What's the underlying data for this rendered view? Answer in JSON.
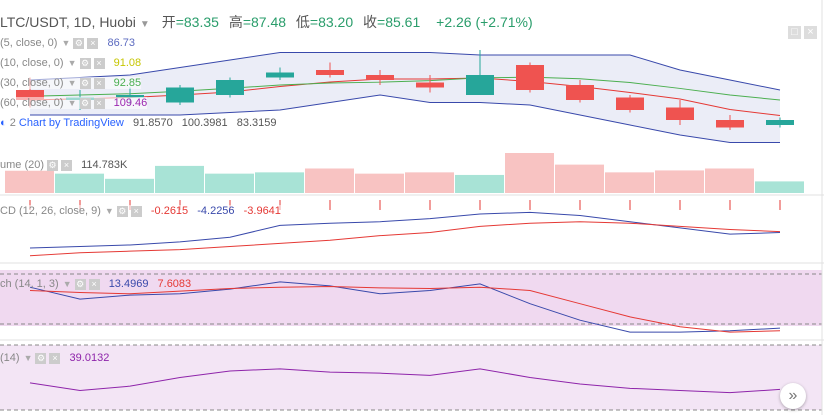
{
  "header": {
    "symbol": "LTC/USDT, 1D, Huobi",
    "open_label": "开",
    "open": "=83.35",
    "high_label": "高",
    "high": "=87.48",
    "low_label": "低",
    "low": "=83.20",
    "close_label": "收",
    "close": "=85.61",
    "change": "+2.26 (+2.71%)"
  },
  "overlays": {
    "ma1": {
      "label": "(5, close, 0)",
      "value": "86.73",
      "color": "#5c6bc0"
    },
    "ma2": {
      "label": "(10, close, 0)",
      "value": "91.08",
      "color": "#c6c600"
    },
    "ma3": {
      "label": "(30, close, 0)",
      "value": "92.85",
      "color": "#4caf50"
    },
    "ma4": {
      "label": "(60, close, 0)",
      "value": "109.46",
      "color": "#9c27b0"
    },
    "bb": {
      "label": "2",
      "v1": "91.8570",
      "v2": "100.3981",
      "v3": "83.3159"
    },
    "watermark": "Chart by TradingView"
  },
  "volume": {
    "label": "ume (20)",
    "value": "114.783K"
  },
  "macd": {
    "label": "CD (12, 26, close, 9)",
    "v1": "-0.2615",
    "v2": "-4.2256",
    "v3": "-3.9641"
  },
  "stoch": {
    "label": "ch (14, 1, 3)",
    "v1": "13.4969",
    "v2": "7.6083"
  },
  "rsi": {
    "label": "(14)",
    "value": "39.0132"
  },
  "colors": {
    "up": "#26a69a",
    "down": "#ef5350"
  },
  "chart_data": {
    "type": "candlestick",
    "candles": [
      {
        "open": 90,
        "high": 95,
        "low": 83,
        "close": 86
      },
      {
        "open": 86,
        "high": 90,
        "low": 82,
        "close": 87
      },
      {
        "open": 87,
        "high": 91,
        "low": 84,
        "close": 88
      },
      {
        "open": 85,
        "high": 92,
        "low": 84,
        "close": 91
      },
      {
        "open": 88,
        "high": 95,
        "low": 87,
        "close": 94
      },
      {
        "open": 95,
        "high": 99,
        "low": 94,
        "close": 97
      },
      {
        "open": 98,
        "high": 101,
        "low": 95,
        "close": 96
      },
      {
        "open": 96,
        "high": 98,
        "low": 92,
        "close": 94
      },
      {
        "open": 93,
        "high": 96,
        "low": 89,
        "close": 91
      },
      {
        "open": 88,
        "high": 106,
        "low": 88,
        "close": 96
      },
      {
        "open": 100,
        "high": 101,
        "low": 89,
        "close": 90
      },
      {
        "open": 92,
        "high": 94,
        "low": 85,
        "close": 86
      },
      {
        "open": 87,
        "high": 88,
        "low": 81,
        "close": 82
      },
      {
        "open": 83,
        "high": 86,
        "low": 76,
        "close": 78
      },
      {
        "open": 78,
        "high": 80,
        "low": 74,
        "close": 75
      },
      {
        "open": 76,
        "high": 79,
        "low": 75,
        "close": 78
      }
    ],
    "volume": [
      35,
      30,
      22,
      42,
      30,
      32,
      38,
      30,
      32,
      28,
      62,
      44,
      32,
      35,
      38,
      18
    ],
    "macd_line": [
      -5.5,
      -5,
      -4.5,
      -3.5,
      -2,
      1.8,
      2.5,
      3,
      4,
      5.5,
      6,
      5,
      3,
      1,
      -1,
      -0.5
    ],
    "signal_line": [
      -8,
      -7,
      -6.5,
      -6,
      -5,
      -4,
      -3,
      -1.5,
      -0.5,
      1.5,
      2.5,
      3,
      2.5,
      1.5,
      0.5,
      -0.2
    ],
    "stoch_k": [
      80,
      62,
      68,
      70,
      77,
      88,
      82,
      70,
      75,
      85,
      55,
      30,
      12,
      12,
      14,
      18
    ],
    "stoch_d": [
      75,
      72,
      70,
      74,
      78,
      80,
      81,
      79,
      78,
      80,
      75,
      55,
      35,
      20,
      12,
      14
    ],
    "rsi": [
      45,
      38,
      42,
      50,
      56,
      58,
      55,
      54,
      52,
      58,
      50,
      44,
      40,
      38,
      36,
      39
    ]
  }
}
